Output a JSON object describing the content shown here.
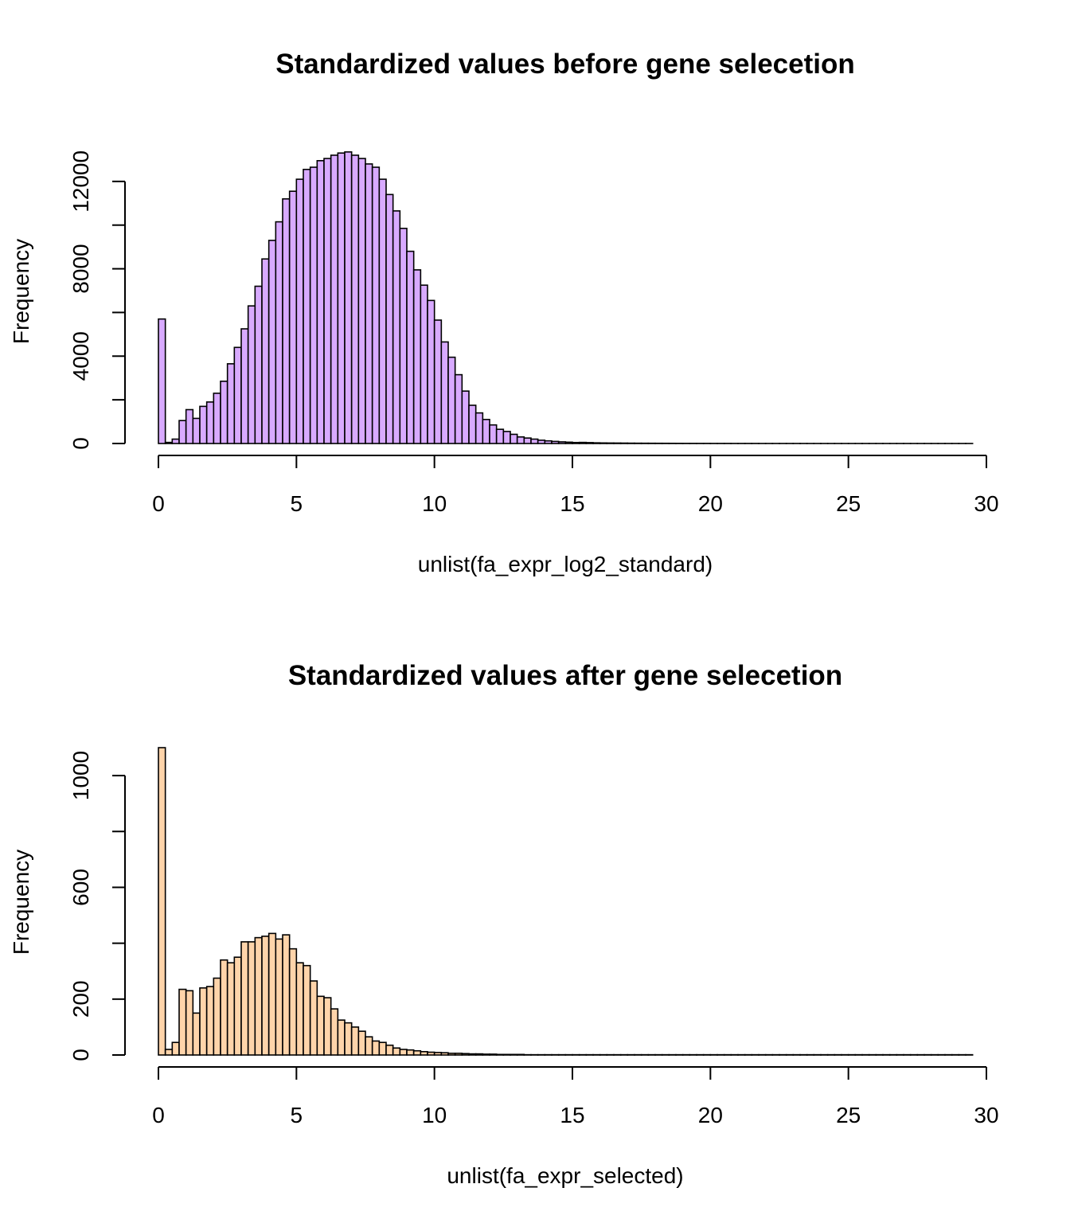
{
  "chart_data": [
    {
      "type": "bar",
      "title": "Standardized values before gene selecetion",
      "xlabel": "unlist(fa_expr_log2_standard)",
      "ylabel": "Frequency",
      "xlim": [
        0,
        30
      ],
      "ylim": [
        0,
        14000
      ],
      "xticks": [
        0,
        5,
        10,
        15,
        20,
        25,
        30
      ],
      "yticks": [
        0,
        2000,
        4000,
        6000,
        8000,
        10000,
        12000
      ],
      "ytick_labels": [
        "0",
        "",
        "4000",
        "",
        "8000",
        "",
        "12000"
      ],
      "bin_width": 0.25,
      "bin_start": 0,
      "color": "#d8aaff",
      "values": [
        5700,
        50,
        200,
        1050,
        1550,
        1150,
        1700,
        1900,
        2300,
        2850,
        3650,
        4400,
        5250,
        6300,
        7200,
        8450,
        9300,
        10150,
        11200,
        11550,
        12100,
        12550,
        12650,
        12950,
        13050,
        13200,
        13300,
        13350,
        13200,
        13050,
        12800,
        12650,
        12100,
        11400,
        10650,
        9850,
        8800,
        7950,
        7250,
        6550,
        5650,
        4650,
        3950,
        3150,
        2400,
        1750,
        1400,
        1100,
        850,
        650,
        550,
        420,
        300,
        250,
        200,
        150,
        120,
        95,
        75,
        60,
        45,
        50,
        40,
        30,
        25,
        22,
        20,
        18,
        15,
        13,
        12,
        11,
        10,
        9,
        8,
        7,
        6,
        6,
        5,
        5,
        4,
        4,
        4,
        3,
        3,
        3,
        3,
        2,
        2,
        2,
        2,
        2,
        2,
        2,
        1,
        1,
        1,
        1,
        1,
        1,
        1,
        1,
        1,
        1,
        1,
        1,
        1,
        1,
        1,
        1,
        1,
        1,
        1,
        1,
        1,
        1,
        1,
        1
      ]
    },
    {
      "type": "bar",
      "title": "Standardized values after gene selecetion",
      "xlabel": "unlist(fa_expr_selected)",
      "ylabel": "Frequency",
      "xlim": [
        0,
        30
      ],
      "ylim": [
        0,
        1100
      ],
      "xticks": [
        0,
        5,
        10,
        15,
        20,
        25,
        30
      ],
      "yticks": [
        0,
        200,
        400,
        600,
        800,
        1000
      ],
      "ytick_labels": [
        "0",
        "200",
        "",
        "600",
        "",
        "1000"
      ],
      "bin_width": 0.25,
      "bin_start": 0,
      "color": "#ffd4aa",
      "values": [
        1100,
        20,
        45,
        235,
        230,
        150,
        240,
        245,
        275,
        340,
        330,
        350,
        405,
        405,
        420,
        425,
        435,
        415,
        430,
        380,
        330,
        320,
        265,
        210,
        205,
        165,
        125,
        115,
        100,
        85,
        65,
        50,
        45,
        35,
        25,
        20,
        18,
        15,
        12,
        10,
        9,
        8,
        6,
        6,
        5,
        4,
        4,
        3,
        3,
        2,
        2,
        2,
        2,
        1,
        1,
        1,
        1,
        1,
        1,
        1,
        1,
        1,
        1,
        1,
        1,
        1,
        1,
        1,
        1,
        1,
        1,
        1,
        1,
        1,
        1,
        1,
        1,
        1,
        1,
        1,
        1,
        1,
        1,
        1,
        1,
        1,
        1,
        1,
        1,
        1,
        1,
        1,
        1,
        1,
        1,
        1,
        1,
        1,
        1,
        1,
        1,
        1,
        1,
        1,
        1,
        1,
        1,
        1,
        1,
        1,
        1,
        1,
        1,
        1,
        1,
        1,
        1,
        1
      ]
    }
  ]
}
